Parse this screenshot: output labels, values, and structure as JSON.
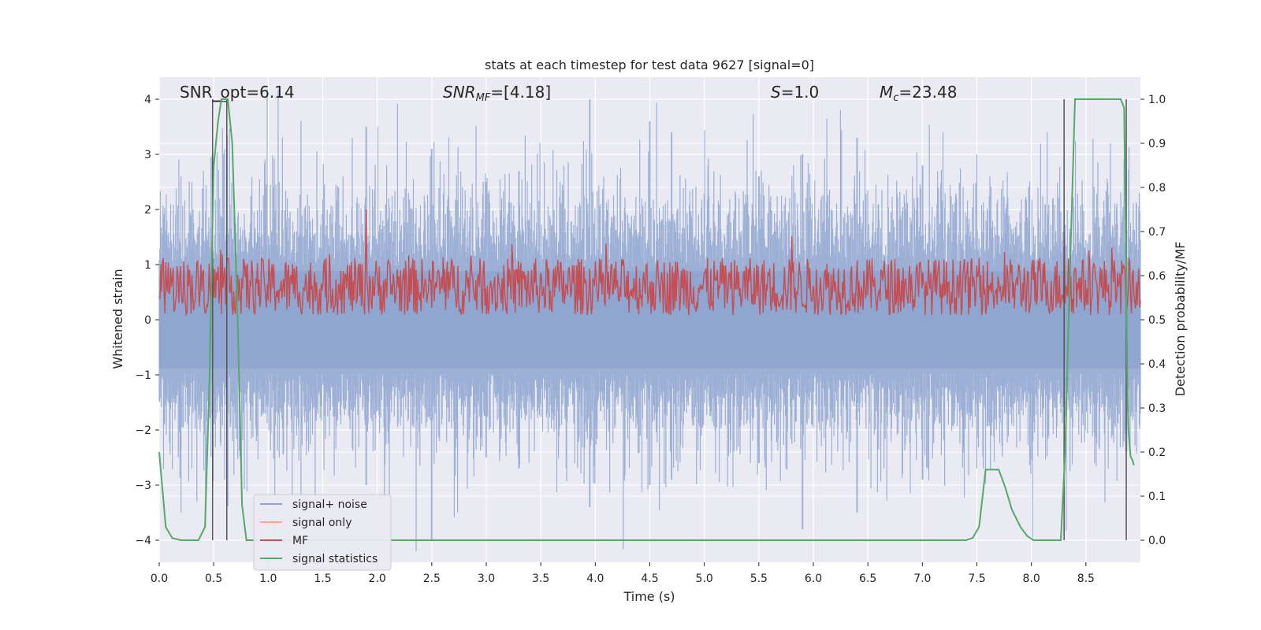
{
  "chart_data": {
    "type": "line",
    "title": "stats at each timestep for test data 9627 [signal=0]",
    "xlabel": "Time (s)",
    "ylabel_left": "Whitened strain",
    "ylabel_right": "Detection probability/MF",
    "xlim": [
      0.0,
      9.0
    ],
    "ylim_left": [
      -4.4,
      4.4
    ],
    "ylim_right": [
      -0.05,
      1.05
    ],
    "x_ticks": [
      "0.0",
      "0.5",
      "1.0",
      "1.5",
      "2.0",
      "2.5",
      "3.0",
      "3.5",
      "4.0",
      "4.5",
      "5.0",
      "5.5",
      "6.0",
      "6.5",
      "7.0",
      "7.5",
      "8.0",
      "8.5"
    ],
    "y_ticks_left": [
      "4",
      "3",
      "2",
      "1",
      "0",
      "−1",
      "−2",
      "−3",
      "−4"
    ],
    "y_ticks_right": [
      "1.0",
      "0.9",
      "0.8",
      "0.7",
      "0.6",
      "0.5",
      "0.4",
      "0.3",
      "0.2",
      "0.1",
      "0.0"
    ],
    "grid": true,
    "annotations": {
      "snr_opt": "SNR_opt=6.14",
      "snr_mf_base": "SNR",
      "snr_mf_sub": "MF",
      "snr_mf_value": "=[4.18]",
      "s_base": "S",
      "s_value": "=1.0",
      "mc_base": "M",
      "mc_sub": "c",
      "mc_value": "=23.48"
    },
    "legend": {
      "placement": "lower-left",
      "entries": [
        {
          "label": "signal+ noise",
          "color": "#8ea5d0"
        },
        {
          "label": "signal only",
          "color": "#f2a98f"
        },
        {
          "label": "MF",
          "color": "#c44e52"
        },
        {
          "label": "signal statistics",
          "color": "#55a868"
        }
      ]
    },
    "series": [
      {
        "name": "signal+ noise",
        "color": "#8ea5d0",
        "description_free": true,
        "envelope_peaks": [
          [
            0.2,
            2.6,
            -3.5
          ],
          [
            0.3,
            2.5,
            -2.7
          ],
          [
            0.6,
            3.1,
            -2.9
          ],
          [
            1.1,
            2.5,
            -2.5
          ],
          [
            1.3,
            3.6,
            -3.2
          ],
          [
            1.9,
            3.5,
            -3.0
          ],
          [
            2.5,
            3.1,
            -4.0
          ],
          [
            3.0,
            2.5,
            -2.5
          ],
          [
            3.3,
            2.7,
            -2.7
          ],
          [
            3.95,
            4.0,
            -3.4
          ],
          [
            4.5,
            3.6,
            -3.0
          ],
          [
            4.7,
            3.4,
            -2.9
          ],
          [
            5.5,
            2.6,
            -2.6
          ],
          [
            5.9,
            3.0,
            -3.8
          ],
          [
            6.4,
            3.3,
            -3.5
          ],
          [
            7.0,
            2.8,
            -2.9
          ],
          [
            7.5,
            3.0,
            -2.7
          ],
          [
            8.3,
            3.0,
            -3.4
          ],
          [
            8.85,
            2.9,
            -2.2
          ]
        ],
        "typical_upper": 1.6,
        "typical_lower": -1.6
      },
      {
        "name": "MF",
        "color": "#c44e52",
        "axis": "right",
        "typical_low": 0.51,
        "typical_high": 0.64,
        "peaks": [
          [
            1.9,
            0.75
          ],
          [
            0.08,
            0.63
          ],
          [
            5.8,
            0.69
          ],
          [
            8.3,
            0.69
          ]
        ]
      },
      {
        "name": "signal statistics",
        "color": "#55a868",
        "axis": "right",
        "x": [
          0.0,
          0.06,
          0.12,
          0.2,
          0.3,
          0.36,
          0.42,
          0.46,
          0.5,
          0.54,
          0.57,
          0.6,
          0.63,
          0.67,
          0.72,
          0.76,
          0.8,
          0.85,
          1.0,
          2.0,
          3.0,
          4.0,
          5.0,
          6.0,
          7.0,
          7.3,
          7.4,
          7.46,
          7.52,
          7.58,
          7.64,
          7.7,
          7.76,
          7.82,
          7.9,
          7.96,
          8.02,
          8.1,
          8.2,
          8.27,
          8.31,
          8.35,
          8.4,
          8.5,
          8.7,
          8.82,
          8.85,
          8.87,
          8.88,
          8.89,
          8.91,
          8.93,
          8.94
        ],
        "y": [
          0.2,
          0.03,
          0.005,
          0.0,
          0.0,
          0.0,
          0.03,
          0.35,
          0.85,
          0.95,
          1.0,
          1.0,
          1.0,
          0.9,
          0.5,
          0.08,
          0.0,
          0.0,
          0.0,
          0.0,
          0.0,
          0.0,
          0.0,
          0.0,
          0.0,
          0.0,
          0.0,
          0.005,
          0.03,
          0.16,
          0.16,
          0.16,
          0.12,
          0.07,
          0.03,
          0.01,
          0.0,
          0.0,
          0.0,
          0.0,
          0.2,
          0.58,
          1.0,
          1.0,
          1.0,
          1.0,
          0.98,
          0.6,
          0.35,
          0.25,
          0.19,
          0.18,
          0.17
        ]
      }
    ],
    "vertical_markers": [
      {
        "x": 0.49,
        "y_top": 1.0,
        "y_bottom": 0.0
      },
      {
        "x": 0.62,
        "y_top": 1.0,
        "y_bottom": 0.0
      },
      {
        "x": 8.3,
        "y_top": 1.0,
        "y_bottom": 0.0
      },
      {
        "x": 8.87,
        "y_top": 1.0,
        "y_bottom": 0.0
      }
    ]
  }
}
